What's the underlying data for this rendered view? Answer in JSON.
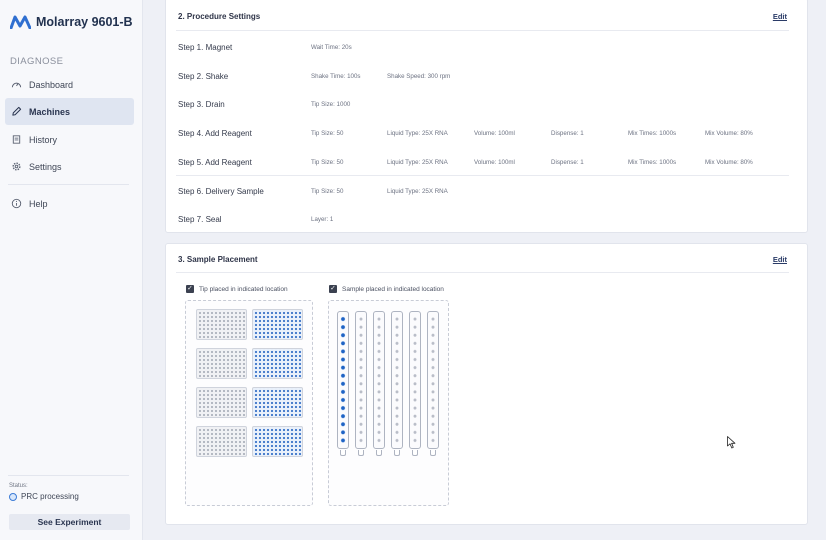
{
  "app": {
    "name": "Molarray 9601-B",
    "logo_icon": "molarray-logo-icon"
  },
  "sidebar": {
    "section_label": "DIAGNOSE",
    "items": [
      {
        "label": "Dashboard",
        "icon": "gauge-icon",
        "active": false
      },
      {
        "label": "Machines",
        "icon": "pencil-icon",
        "active": true
      },
      {
        "label": "History",
        "icon": "history-icon",
        "active": false
      },
      {
        "label": "Settings",
        "icon": "gear-icon",
        "active": false
      }
    ],
    "help": {
      "label": "Help",
      "icon": "help-icon"
    },
    "status": {
      "label": "Status:",
      "value": "PRC processing",
      "color": "#3c7bd6"
    },
    "see_experiment": "See Experiment"
  },
  "procedure": {
    "title": "2. Procedure Settings",
    "edit": "Edit",
    "steps": [
      {
        "name": "Step 1. Magnet",
        "params": [
          "Wait Time: 20s"
        ]
      },
      {
        "name": "Step 2. Shake",
        "params": [
          "Shake Time: 100s",
          "Shake Speed: 300 rpm"
        ]
      },
      {
        "name": "Step 3. Drain",
        "params": [
          "Tip Size: 1000"
        ]
      },
      {
        "name": "Step 4. Add Reagent",
        "params": [
          "Tip Size: 50",
          "Liquid Type: 25X RNA",
          "Volume: 100ml",
          "Dispense: 1",
          "Mix Times: 1000s",
          "Mix Volume: 80%"
        ]
      },
      {
        "name": "Step 5. Add Reagent",
        "params": [
          "Tip Size: 50",
          "Liquid Type: 25X RNA",
          "Volume: 100ml",
          "Dispense: 1",
          "Mix Times: 1000s",
          "Mix Volume: 80%"
        ]
      },
      {
        "name": "Step 6. Delivery Sample",
        "params": [
          "Tip Size: 50",
          "Liquid Type: 25X RNA"
        ]
      },
      {
        "name": "Step 7. Seal",
        "params": [
          "Layer: 1"
        ]
      }
    ]
  },
  "placement": {
    "title": "3. Sample Placement",
    "edit": "Edit",
    "tip_check": {
      "label": "Tip placed in indicated location",
      "checked": true
    },
    "sample_check": {
      "label": "Sample placed in indicated location",
      "checked": true
    },
    "tip_racks": [
      "grey",
      "blue",
      "grey",
      "blue",
      "grey",
      "blue",
      "grey",
      "blue"
    ],
    "strips": [
      true,
      false,
      false,
      false,
      false,
      false
    ],
    "colors": {
      "tip_grey": "#a9aeb9",
      "tip_blue": "#3a73c8",
      "sample_blue": "#1f63c4"
    }
  }
}
